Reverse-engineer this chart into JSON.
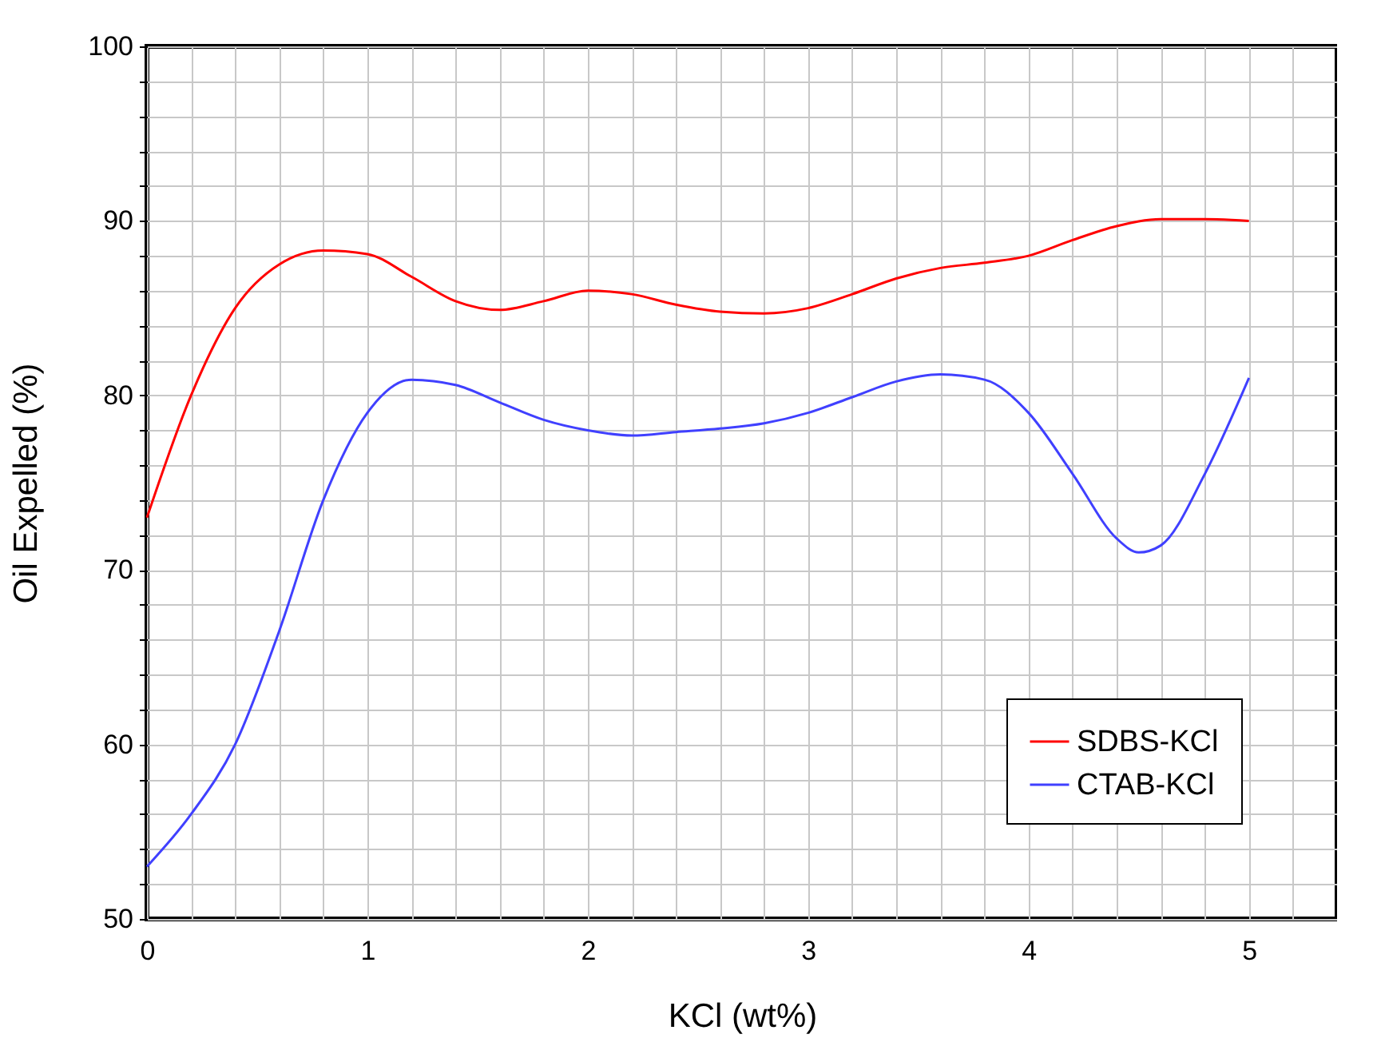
{
  "chart_data": {
    "type": "line",
    "xlabel": "KCl (wt%)",
    "ylabel": "Oil Expelled (%)",
    "xlim": [
      0,
      5.4
    ],
    "xticks": [
      0,
      {
        "value": 0.2,
        "label": null
      },
      {
        "value": 0.4,
        "label": null
      },
      {
        "value": 0.6,
        "label": null
      },
      {
        "value": 0.8,
        "label": null
      },
      1,
      {
        "value": 1.2,
        "label": null
      },
      {
        "value": 1.4,
        "label": null
      },
      {
        "value": 1.6,
        "label": null
      },
      {
        "value": 1.8,
        "label": null
      },
      2,
      {
        "value": 2.2,
        "label": null
      },
      {
        "value": 2.4,
        "label": null
      },
      {
        "value": 2.6,
        "label": null
      },
      {
        "value": 2.8,
        "label": null
      },
      3,
      {
        "value": 3.2,
        "label": null
      },
      {
        "value": 3.4,
        "label": null
      },
      {
        "value": 3.6,
        "label": null
      },
      {
        "value": 3.8,
        "label": null
      },
      4,
      {
        "value": 4.2,
        "label": null
      },
      {
        "value": 4.4,
        "label": null
      },
      {
        "value": 4.6,
        "label": null
      },
      {
        "value": 4.8,
        "label": null
      },
      5,
      {
        "value": 5.2,
        "label": null
      }
    ],
    "ylim": [
      50,
      100
    ],
    "yticks": [
      50,
      {
        "value": 52,
        "label": null
      },
      {
        "value": 54,
        "label": null
      },
      {
        "value": 56,
        "label": null
      },
      {
        "value": 58,
        "label": null
      },
      60,
      {
        "value": 62,
        "label": null
      },
      {
        "value": 64,
        "label": null
      },
      {
        "value": 66,
        "label": null
      },
      {
        "value": 68,
        "label": null
      },
      70,
      {
        "value": 72,
        "label": null
      },
      {
        "value": 74,
        "label": null
      },
      {
        "value": 76,
        "label": null
      },
      {
        "value": 78,
        "label": null
      },
      80,
      {
        "value": 82,
        "label": null
      },
      {
        "value": 84,
        "label": null
      },
      {
        "value": 86,
        "label": null
      },
      {
        "value": 88,
        "label": null
      },
      90,
      {
        "value": 92,
        "label": null
      },
      {
        "value": 94,
        "label": null
      },
      {
        "value": 96,
        "label": null
      },
      {
        "value": 98,
        "label": null
      },
      100
    ],
    "grid": true,
    "legend": "bottom right",
    "marker": "none",
    "line_style": "solid",
    "series": [
      {
        "name": "SDBS-KCl",
        "color": "#ff0000",
        "x": [
          0,
          0.2,
          0.4,
          0.6,
          0.8,
          1.0,
          1.2,
          1.4,
          1.6,
          1.8,
          2.0,
          2.2,
          2.4,
          2.6,
          2.8,
          3.0,
          3.2,
          3.4,
          3.6,
          3.8,
          4.0,
          4.2,
          4.4,
          4.6,
          4.8,
          5.0
        ],
        "values": [
          73,
          80,
          85,
          87.5,
          88.3,
          88.1,
          86.8,
          85.4,
          84.9,
          85.4,
          86.0,
          85.8,
          85.2,
          84.8,
          84.7,
          85.0,
          85.8,
          86.7,
          87.3,
          87.6,
          88.0,
          88.9,
          89.7,
          90.1,
          90.1,
          90.0
        ]
      },
      {
        "name": "CTAB-KCl",
        "color": "#4040ff",
        "x": [
          0,
          0.2,
          0.4,
          0.6,
          0.8,
          1.0,
          1.2,
          1.4,
          1.6,
          1.8,
          2.0,
          2.2,
          2.4,
          2.6,
          2.8,
          3.0,
          3.2,
          3.4,
          3.6,
          3.8,
          4.0,
          4.2,
          4.4,
          4.5,
          4.6,
          4.8,
          5.0
        ],
        "values": [
          53,
          56,
          60,
          66.5,
          74,
          79,
          80.9,
          80.6,
          79.6,
          78.6,
          78.0,
          77.7,
          77.9,
          78.1,
          78.4,
          79.0,
          79.9,
          80.8,
          81.2,
          80.9,
          79.0,
          75.5,
          71.8,
          71.0,
          71.4,
          75.5,
          81.0
        ]
      }
    ]
  }
}
